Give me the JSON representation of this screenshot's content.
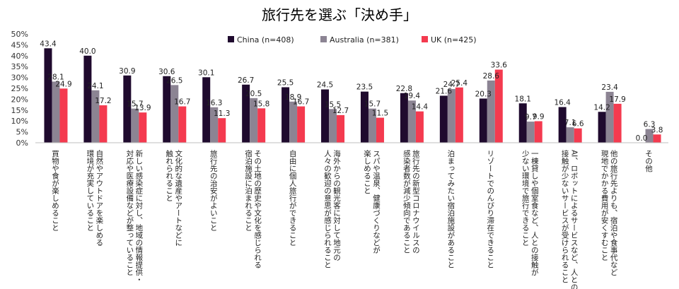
{
  "chart_data": {
    "type": "bar",
    "title": "旅行先を選ぶ「決め手」",
    "ylim": [
      0,
      50
    ],
    "ytick_step": 5,
    "ytick_suffix": "%",
    "legend_position": "top-right",
    "grid": false,
    "categories": [
      [
        "買物や食が楽しめること"
      ],
      [
        "自然やアウトドアを楽しめる",
        "環境が充実していること"
      ],
      [
        "新しい感染症に対し、地域の情報提供・",
        "対応や医療設備などが整っていること"
      ],
      [
        "文化的な遺産やアートなどに",
        "触れられること"
      ],
      [
        "旅行先の治安がよいこと"
      ],
      [
        "その土地の歴史や文化を感じられる",
        "宿泊施設に泊まれること"
      ],
      [
        "自由に個人旅行ができること"
      ],
      [
        "海外からの観光客に対して地元の",
        "人々の歓迎の意思が感じられること"
      ],
      [
        "スパや温泉、健康づくりなどが",
        "楽しめること"
      ],
      [
        "旅行先の新型コロナウイルスの",
        "感染者数が減少傾向であること"
      ],
      [
        "泊まってみたい宿泊施設があること"
      ],
      [
        "リゾートでのんびり滞在できること"
      ],
      [
        "一棟貸しや個室食など、人との接触が",
        "少ない環境で旅行できること"
      ],
      [
        "AI、ロボットによるサービスなど、人との",
        "接触が少ないサービスが受けられること"
      ],
      [
        "他の旅行先よりも、宿泊や食事代など",
        "現地でかかる費用が安くすむこと"
      ],
      [
        "その他"
      ]
    ],
    "series": [
      {
        "name": "China (n=408)",
        "color": "#1f0a2e",
        "values": [
          43.4,
          40.0,
          30.9,
          30.6,
          30.1,
          26.7,
          25.5,
          24.5,
          23.5,
          22.8,
          21.6,
          20.3,
          18.1,
          16.4,
          14.2,
          0.0
        ]
      },
      {
        "name": "Australia (n=381)",
        "color": "#8c8493",
        "values": [
          28.1,
          24.1,
          15.7,
          26.5,
          16.3,
          20.5,
          18.9,
          15.5,
          15.7,
          19.4,
          24.7,
          28.6,
          9.7,
          7.1,
          23.4,
          6.3
        ]
      },
      {
        "name": "UK (n=425)",
        "color": "#f43a4f",
        "values": [
          24.9,
          17.2,
          13.9,
          16.7,
          11.3,
          15.8,
          16.7,
          12.7,
          11.5,
          14.4,
          25.4,
          33.6,
          9.9,
          6.6,
          17.9,
          3.8
        ]
      }
    ]
  }
}
